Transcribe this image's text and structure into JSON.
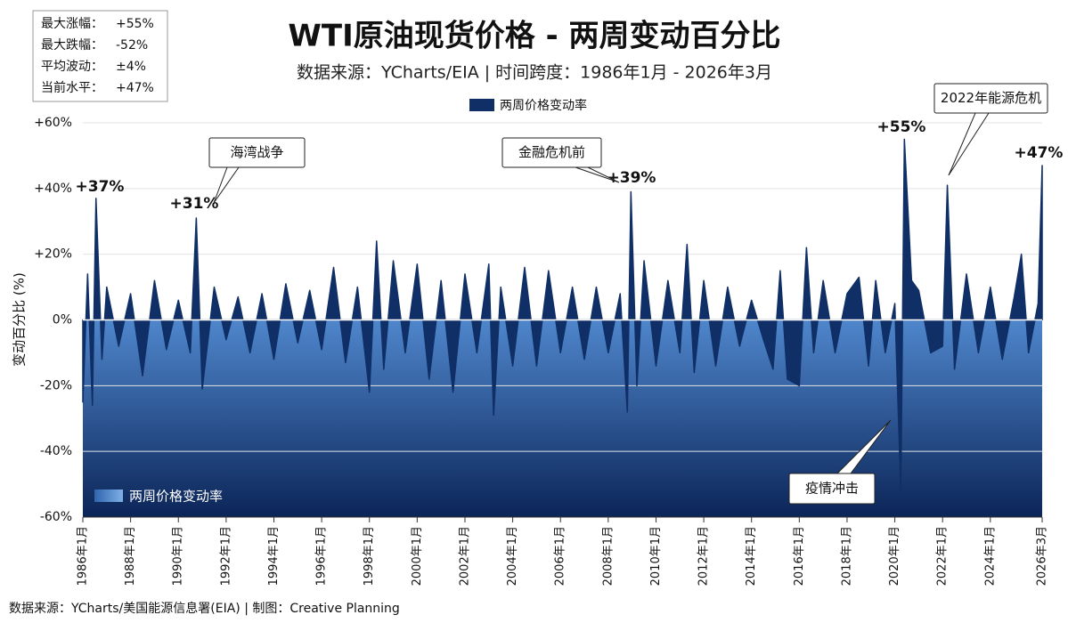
{
  "chart_data": {
    "type": "area",
    "title": "WTI原油现货价格 - 两周变动百分比",
    "subtitle": "数据来源：YCharts/EIA | 时间跨度：1986年1月 - 2026年3月",
    "y_label": "变动百分比 (%)",
    "footer": "数据来源：YCharts/美国能源信息署(EIA) | 制图：Creative Planning",
    "stats": [
      {
        "label": "最大涨幅：",
        "value": "+55%"
      },
      {
        "label": "最大跌幅：",
        "value": "-52%"
      },
      {
        "label": "平均波动：",
        "value": "±4%"
      },
      {
        "label": "当前水平：",
        "value": "+47%"
      }
    ],
    "annotations": [
      "海湾战争",
      "金融危机前",
      "疫情冲击",
      "2022年能源危机"
    ],
    "peak_labels": [
      "+37%",
      "+31%",
      "+39%",
      "+55%",
      "+47%"
    ],
    "x": [
      1986.0,
      1986.2,
      1986.4,
      1986.55,
      1986.8,
      1987.0,
      1987.5,
      1988.0,
      1988.5,
      1989.0,
      1989.5,
      1990.0,
      1990.5,
      1990.75,
      1991.0,
      1991.5,
      1992.0,
      1992.5,
      1993.0,
      1993.5,
      1994.0,
      1994.5,
      1995.0,
      1995.5,
      1996.0,
      1996.5,
      1997.0,
      1997.5,
      1998.0,
      1998.3,
      1998.6,
      1999.0,
      1999.5,
      2000.0,
      2000.5,
      2001.0,
      2001.5,
      2002.0,
      2002.5,
      2003.0,
      2003.2,
      2003.5,
      2004.0,
      2004.5,
      2005.0,
      2005.5,
      2006.0,
      2006.5,
      2007.0,
      2007.5,
      2008.0,
      2008.5,
      2008.8,
      2008.95,
      2009.2,
      2009.5,
      2010.0,
      2010.5,
      2011.0,
      2011.3,
      2011.6,
      2012.0,
      2012.5,
      2013.0,
      2013.5,
      2014.0,
      2014.5,
      2014.9,
      2015.2,
      2015.5,
      2016.0,
      2016.3,
      2016.6,
      2017.0,
      2017.5,
      2018.0,
      2018.5,
      2018.9,
      2019.2,
      2019.6,
      2020.0,
      2020.25,
      2020.4,
      2020.7,
      2021.0,
      2021.5,
      2022.0,
      2022.2,
      2022.5,
      2023.0,
      2023.5,
      2024.0,
      2024.5,
      2025.0,
      2025.3,
      2025.6,
      2026.0,
      2026.17
    ],
    "series": [
      {
        "name": "两周价格变动率",
        "color": "#0f2f66",
        "values": [
          -25,
          14,
          -26,
          37,
          -12,
          10,
          -8,
          8,
          -17,
          12,
          -9,
          6,
          -10,
          31,
          -21,
          10,
          -6,
          7,
          -10,
          8,
          -12,
          11,
          -7,
          9,
          -9,
          16,
          -13,
          10,
          -22,
          24,
          -15,
          18,
          -10,
          17,
          -18,
          12,
          -22,
          14,
          -10,
          17,
          -29,
          10,
          -14,
          16,
          -14,
          15,
          -10,
          10,
          -12,
          10,
          -10,
          8,
          -28,
          39,
          -20,
          18,
          -14,
          12,
          -10,
          23,
          -16,
          12,
          -14,
          10,
          -8,
          6,
          -6,
          -15,
          15,
          -18,
          -20,
          22,
          -10,
          12,
          -10,
          8,
          13,
          -14,
          12,
          -10,
          5,
          -52,
          55,
          12,
          9,
          -10,
          -8,
          41,
          -15,
          14,
          -10,
          10,
          -12,
          7,
          20,
          -10,
          5,
          47
        ]
      }
    ],
    "xlim": [
      1986.0,
      2026.17
    ],
    "xticks": [
      {
        "value": 1986,
        "label": "1986年1月"
      },
      {
        "value": 1988,
        "label": "1988年1月"
      },
      {
        "value": 1990,
        "label": "1990年1月"
      },
      {
        "value": 1992,
        "label": "1992年1月"
      },
      {
        "value": 1994,
        "label": "1994年1月"
      },
      {
        "value": 1996,
        "label": "1996年1月"
      },
      {
        "value": 1998,
        "label": "1998年1月"
      },
      {
        "value": 2000,
        "label": "2000年1月"
      },
      {
        "value": 2002,
        "label": "2002年1月"
      },
      {
        "value": 2004,
        "label": "2004年1月"
      },
      {
        "value": 2006,
        "label": "2006年1月"
      },
      {
        "value": 2008,
        "label": "2008年1月"
      },
      {
        "value": 2010,
        "label": "2010年1月"
      },
      {
        "value": 2012,
        "label": "2012年1月"
      },
      {
        "value": 2014,
        "label": "2014年1月"
      },
      {
        "value": 2016,
        "label": "2016年1月"
      },
      {
        "value": 2018,
        "label": "2018年1月"
      },
      {
        "value": 2020,
        "label": "2020年1月"
      },
      {
        "value": 2022,
        "label": "2022年1月"
      },
      {
        "value": 2024,
        "label": "2024年1月"
      },
      {
        "value": 2026.17,
        "label": "2026年3月"
      }
    ],
    "ylim": [
      -60,
      60
    ],
    "yticks": [
      {
        "value": -60,
        "label": "-60%"
      },
      {
        "value": -40,
        "label": "-40%"
      },
      {
        "value": -20,
        "label": "-20%"
      },
      {
        "value": 0,
        "label": "0%"
      },
      {
        "value": 20,
        "label": "+20%"
      },
      {
        "value": 40,
        "label": "+40%"
      },
      {
        "value": 60,
        "label": "+60%"
      }
    ],
    "grid": true
  }
}
